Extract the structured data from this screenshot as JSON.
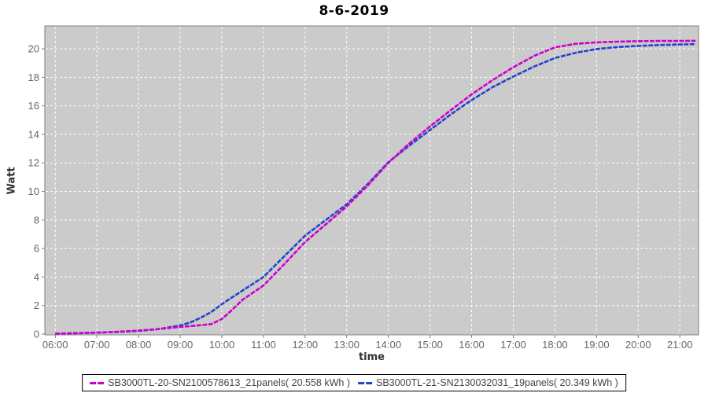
{
  "title": "8-6-2019",
  "chart_data": {
    "type": "line",
    "title": "8-6-2019",
    "xlabel": "time",
    "ylabel": "Watt",
    "x_tick_labels": [
      "06:00",
      "07:00",
      "08:00",
      "09:00",
      "10:00",
      "11:00",
      "12:00",
      "13:00",
      "14:00",
      "15:00",
      "16:00",
      "17:00",
      "18:00",
      "19:00",
      "20:00",
      "21:00"
    ],
    "x_tick_hours": [
      6,
      7,
      8,
      9,
      10,
      11,
      12,
      13,
      14,
      15,
      16,
      17,
      18,
      19,
      20,
      21
    ],
    "y_ticks": [
      0,
      2,
      4,
      6,
      8,
      10,
      12,
      14,
      16,
      18,
      20
    ],
    "xlim_hours": [
      5.75,
      21.45
    ],
    "ylim": [
      0,
      21.6
    ],
    "grid": true,
    "legend_position": "bottom",
    "plot_bg": "#cbcbcb",
    "grid_color": "#ffffff",
    "axis_color": "#7f7f7f",
    "tick_label_color": "#666666",
    "x_hours": [
      6,
      6.5,
      7,
      7.5,
      8,
      8.5,
      9,
      9.25,
      9.5,
      9.75,
      10,
      10.25,
      10.5,
      11,
      11.5,
      12,
      12.5,
      13,
      13.5,
      14,
      14.5,
      15,
      15.5,
      16,
      16.5,
      17,
      17.5,
      18,
      18.5,
      19,
      19.5,
      20,
      20.5,
      21,
      21.38
    ],
    "series": [
      {
        "name": "SB3000TL-20-SN2100578613_21panels( 20.558 kWh )",
        "color": "#cc00cc",
        "total_kwh": 20.558,
        "values": [
          0.03,
          0.06,
          0.1,
          0.16,
          0.24,
          0.36,
          0.5,
          0.56,
          0.62,
          0.7,
          1.05,
          1.7,
          2.4,
          3.4,
          4.9,
          6.45,
          7.7,
          8.95,
          10.4,
          12.0,
          13.35,
          14.55,
          15.7,
          16.8,
          17.8,
          18.7,
          19.5,
          20.1,
          20.35,
          20.45,
          20.5,
          20.53,
          20.55,
          20.55,
          20.56
        ]
      },
      {
        "name": "SB3000TL-21-SN2130032031_19panels( 20.349 kWh )",
        "color": "#2244cc",
        "total_kwh": 20.349,
        "values": [
          0.03,
          0.06,
          0.1,
          0.15,
          0.22,
          0.35,
          0.6,
          0.82,
          1.15,
          1.55,
          2.1,
          2.58,
          3.05,
          4.0,
          5.45,
          6.9,
          8.0,
          9.1,
          10.5,
          12.05,
          13.2,
          14.3,
          15.4,
          16.4,
          17.3,
          18.05,
          18.75,
          19.35,
          19.72,
          19.98,
          20.12,
          20.2,
          20.26,
          20.3,
          20.32
        ]
      }
    ]
  }
}
